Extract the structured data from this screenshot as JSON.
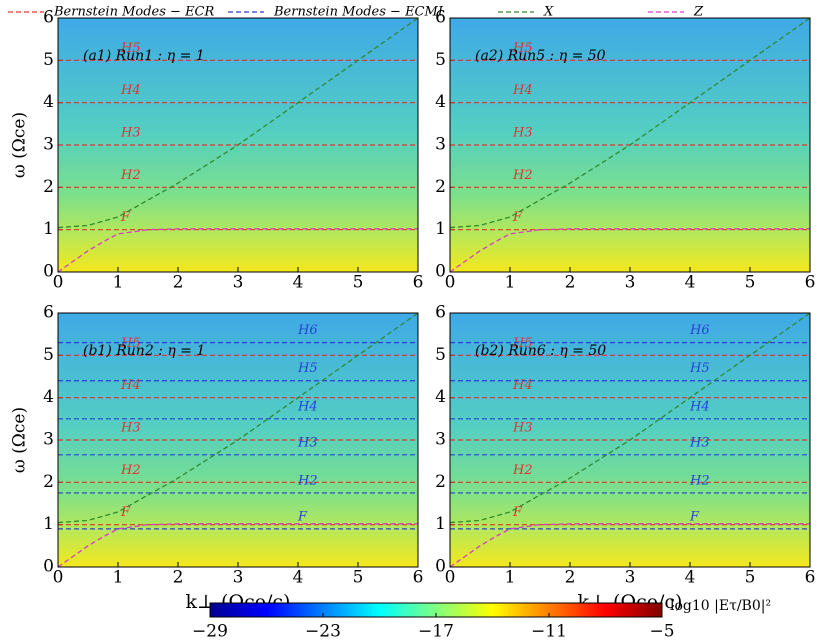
{
  "chart_data": [
    {
      "type": "line",
      "title": "(a1) Run1 : η = 1",
      "ylabel": "ω (Ωce)",
      "xlim": [
        0,
        6
      ],
      "ylim": [
        0,
        6
      ],
      "xticks": [
        0,
        1,
        2,
        3,
        4,
        5,
        6
      ],
      "yticks": [
        0,
        1,
        2,
        3,
        4,
        5,
        6
      ],
      "series": [
        {
          "name": "Bernstein Modes − ECR",
          "color": "#e8302a",
          "values": [
            1,
            2,
            3,
            4,
            5
          ],
          "labels": [
            "F",
            "H2",
            "H3",
            "H4",
            "H5"
          ]
        },
        {
          "name": "X",
          "color": "#2e8b2e",
          "x": [
            0,
            0.5,
            1,
            1.5,
            2,
            3,
            4,
            5,
            6
          ],
          "values": [
            1.05,
            1.1,
            1.3,
            1.7,
            2.1,
            3.0,
            4.0,
            5.0,
            6.0
          ]
        },
        {
          "name": "Z",
          "color": "#d63cc9",
          "x": [
            0,
            0.5,
            0.8,
            1,
            1.5,
            2,
            6
          ],
          "values": [
            0,
            0.5,
            0.75,
            0.9,
            1.0,
            1.02,
            1.02
          ]
        }
      ]
    },
    {
      "type": "line",
      "title": "(a2) Run5 : η = 50",
      "xlim": [
        0,
        6
      ],
      "ylim": [
        0,
        6
      ],
      "xticks": [
        0,
        1,
        2,
        3,
        4,
        5,
        6
      ],
      "yticks": [
        0,
        1,
        2,
        3,
        4,
        5,
        6
      ],
      "series": [
        {
          "name": "Bernstein Modes − ECR",
          "color": "#e8302a",
          "values": [
            1,
            2,
            3,
            4,
            5
          ],
          "labels": [
            "F",
            "H2",
            "H3",
            "H4",
            "H5"
          ]
        },
        {
          "name": "X",
          "color": "#2e8b2e",
          "x": [
            0,
            0.5,
            1,
            1.5,
            2,
            3,
            4,
            5,
            6
          ],
          "values": [
            1.05,
            1.1,
            1.3,
            1.7,
            2.1,
            3.0,
            4.0,
            5.0,
            6.0
          ]
        },
        {
          "name": "Z",
          "color": "#d63cc9",
          "x": [
            0,
            0.5,
            0.8,
            1,
            1.5,
            2,
            6
          ],
          "values": [
            0,
            0.5,
            0.75,
            0.9,
            1.0,
            1.02,
            1.02
          ]
        }
      ]
    },
    {
      "type": "line",
      "title": "(b1) Run2 : η = 1",
      "ylabel": "ω (Ωce)",
      "xlabel": "k⊥ (Ωce/c)",
      "xlim": [
        0,
        6
      ],
      "ylim": [
        0,
        6
      ],
      "xticks": [
        0,
        1,
        2,
        3,
        4,
        5,
        6
      ],
      "yticks": [
        0,
        1,
        2,
        3,
        4,
        5,
        6
      ],
      "series": [
        {
          "name": "Bernstein Modes − ECR",
          "color": "#e8302a",
          "values": [
            1,
            2,
            3,
            4,
            5
          ],
          "labels": [
            "F",
            "H2",
            "H3",
            "H4",
            "H5"
          ]
        },
        {
          "name": "Bernstein Modes − ECMI",
          "color": "#2b3fd6",
          "values": [
            0.9,
            1.75,
            2.65,
            3.5,
            4.4,
            5.3
          ],
          "labels": [
            "F",
            "H2",
            "H3",
            "H4",
            "H5",
            "H6"
          ]
        },
        {
          "name": "X",
          "color": "#2e8b2e",
          "x": [
            0,
            0.5,
            1,
            1.5,
            2,
            3,
            4,
            5,
            6
          ],
          "values": [
            1.05,
            1.1,
            1.3,
            1.7,
            2.1,
            3.0,
            4.0,
            5.0,
            6.0
          ]
        },
        {
          "name": "Z",
          "color": "#d63cc9",
          "x": [
            0,
            0.5,
            0.8,
            1,
            1.5,
            2,
            6
          ],
          "values": [
            0,
            0.5,
            0.75,
            0.9,
            1.0,
            1.02,
            1.02
          ]
        }
      ]
    },
    {
      "type": "line",
      "title": "(b2) Run6 : η = 50",
      "xlabel": "k⊥ (Ωce/c)",
      "xlim": [
        0,
        6
      ],
      "ylim": [
        0,
        6
      ],
      "xticks": [
        0,
        1,
        2,
        3,
        4,
        5,
        6
      ],
      "yticks": [
        0,
        1,
        2,
        3,
        4,
        5,
        6
      ],
      "series": [
        {
          "name": "Bernstein Modes − ECR",
          "color": "#e8302a",
          "values": [
            1,
            2,
            3,
            4,
            5
          ],
          "labels": [
            "F",
            "H2",
            "H3",
            "H4",
            "H5"
          ]
        },
        {
          "name": "Bernstein Modes − ECMI",
          "color": "#2b3fd6",
          "values": [
            0.9,
            1.75,
            2.65,
            3.5,
            4.4,
            5.3
          ],
          "labels": [
            "F",
            "H2",
            "H3",
            "H4",
            "H5",
            "H6"
          ]
        },
        {
          "name": "X",
          "color": "#2e8b2e",
          "x": [
            0,
            0.5,
            1,
            1.5,
            2,
            3,
            4,
            5,
            6
          ],
          "values": [
            1.05,
            1.1,
            1.3,
            1.7,
            2.1,
            3.0,
            4.0,
            5.0,
            6.0
          ]
        },
        {
          "name": "Z",
          "color": "#d63cc9",
          "x": [
            0,
            0.5,
            0.8,
            1,
            1.5,
            2,
            6
          ],
          "values": [
            0,
            0.5,
            0.75,
            0.9,
            1.0,
            1.02,
            1.02
          ]
        }
      ]
    },
    {
      "type": "colorbar",
      "label": "log10 |Eτ/B0|²",
      "clim": [
        -29,
        -5
      ],
      "ticks": [
        {
          "value": -29,
          "label": "−29"
        },
        {
          "value": -23,
          "label": "−23"
        },
        {
          "value": -17,
          "label": "−17"
        },
        {
          "value": -11,
          "label": "−11"
        },
        {
          "value": -5,
          "label": "−5"
        }
      ]
    }
  ]
}
